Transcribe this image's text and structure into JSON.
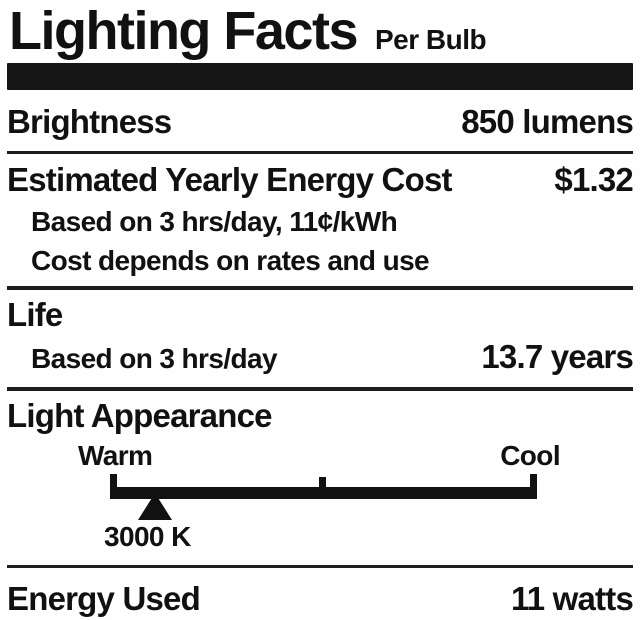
{
  "label": {
    "title": "Lighting Facts",
    "subtitle": "Per Bulb",
    "brightness": {
      "name": "Brightness",
      "value": "850 lumens"
    },
    "energy_cost": {
      "name": "Estimated Yearly Energy Cost",
      "value": "$1.32",
      "notes": [
        "Based on 3 hrs/day, 11¢/kWh",
        "Cost depends on rates and use"
      ]
    },
    "life": {
      "name": "Life",
      "basis": "Based on 3 hrs/day",
      "value": "13.7 years"
    },
    "light_appearance": {
      "name": "Light Appearance",
      "scale_left": "Warm",
      "scale_right": "Cool",
      "marker_value": "3000 K",
      "marker_position_pct": 10.5
    },
    "energy_used": {
      "name": "Energy Used",
      "value": "11 watts"
    }
  },
  "colors": {
    "text": "#111111",
    "background": "#fefefe",
    "divider_bar": "#161616",
    "rules": "#1d1d1d"
  }
}
